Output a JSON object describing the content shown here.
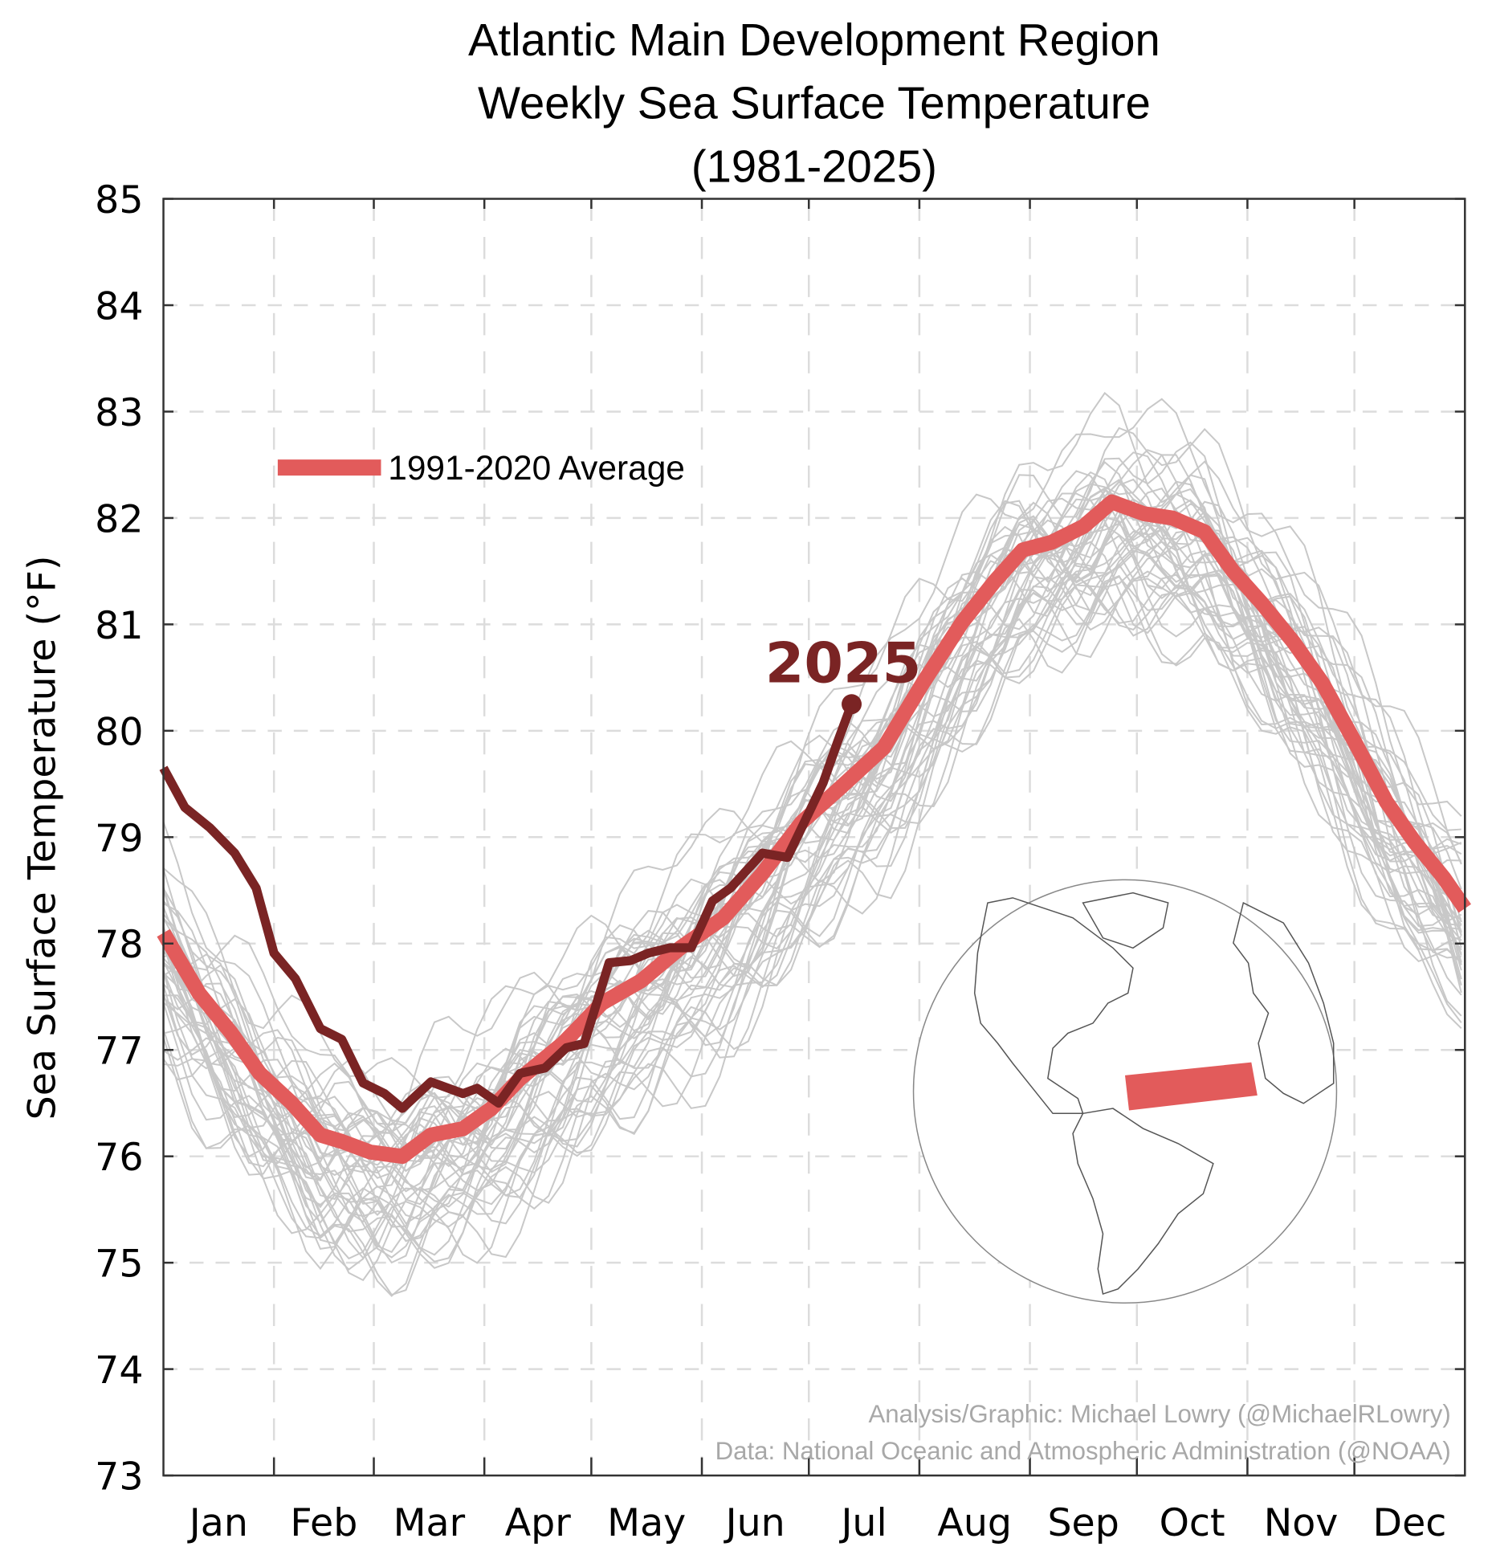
{
  "chart_data": {
    "type": "line",
    "title": [
      "Atlantic Main Development Region",
      "Weekly Sea Surface Temperature",
      "(1981-2025)"
    ],
    "xlabel": "",
    "ylabel": "Sea Surface Temperature (°F)",
    "ylim": [
      73,
      85
    ],
    "yticks": [
      73,
      74,
      75,
      76,
      77,
      78,
      79,
      80,
      81,
      82,
      83,
      84,
      85
    ],
    "xlim_day_of_year": [
      0,
      365
    ],
    "month_labels": [
      "Jan",
      "Feb",
      "Mar",
      "Apr",
      "May",
      "Jun",
      "Jul",
      "Aug",
      "Sep",
      "Oct",
      "Nov",
      "Dec"
    ],
    "month_start_days": [
      0,
      31,
      59,
      90,
      120,
      151,
      181,
      212,
      243,
      273,
      304,
      334
    ],
    "grid": true,
    "legend": {
      "label": "1991-2020 Average",
      "placement": "upper-left"
    },
    "series": [
      {
        "name": "1991-2020 Average",
        "color": "#e25b5b",
        "x": [
          0,
          10,
          19,
          27,
          36,
          44,
          50,
          58,
          67,
          75,
          84,
          92,
          100,
          112,
          123,
          134,
          145,
          157,
          168,
          179,
          190,
          202,
          213,
          224,
          233,
          241,
          249,
          258,
          266,
          275,
          283,
          292,
          300,
          308,
          317,
          325,
          334,
          343,
          351,
          359,
          365
        ],
        "y": [
          78.1,
          77.53,
          77.16,
          76.78,
          76.5,
          76.2,
          76.14,
          76.04,
          76.0,
          76.2,
          76.26,
          76.45,
          76.73,
          77.06,
          77.44,
          77.65,
          77.96,
          78.24,
          78.66,
          79.14,
          79.47,
          79.84,
          80.45,
          81.02,
          81.4,
          81.7,
          81.77,
          81.92,
          82.15,
          82.04,
          82.0,
          81.87,
          81.5,
          81.2,
          80.83,
          80.45,
          79.9,
          79.33,
          78.95,
          78.62,
          78.33
        ]
      },
      {
        "name": "2025",
        "label": "2025",
        "color": "#7a2424",
        "x": [
          0,
          6,
          13,
          20,
          26,
          31,
          37,
          44,
          50,
          56,
          62,
          67,
          75,
          84,
          88,
          94,
          100,
          107,
          113,
          118,
          125,
          131,
          136,
          142,
          148,
          154,
          159,
          168,
          175,
          179,
          185,
          189,
          193
        ],
        "y": [
          79.65,
          79.28,
          79.09,
          78.85,
          78.52,
          77.91,
          77.67,
          77.2,
          77.1,
          76.69,
          76.59,
          76.45,
          76.7,
          76.59,
          76.64,
          76.5,
          76.78,
          76.83,
          77.02,
          77.06,
          77.82,
          77.84,
          77.91,
          77.96,
          77.96,
          78.4,
          78.52,
          78.85,
          78.81,
          79.09,
          79.51,
          79.89,
          80.25
        ]
      }
    ],
    "historical_years": "1981-2024",
    "historical_color": "#c8c8c8",
    "credits": [
      "Analysis/Graphic: Michael Lowry (@MichaelRLowry)",
      "Data: National Oceanic and Atmospheric Administration (@NOAA)"
    ]
  }
}
